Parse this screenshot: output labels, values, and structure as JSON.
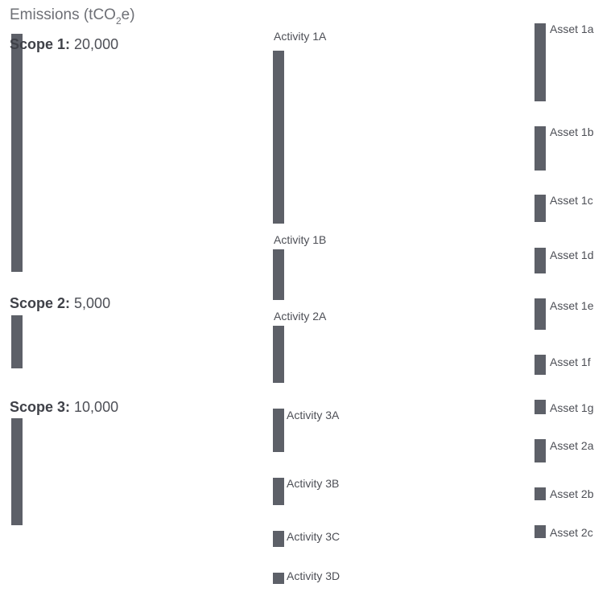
{
  "title": {
    "main": "Emissions (tCO",
    "sub": "2",
    "end": "e)"
  },
  "colors": {
    "node": "#5d6068",
    "scope1": "#d07c8c",
    "scope2": "#e0aab2",
    "scope3": "#ecccd0"
  },
  "scopes": [
    {
      "id": "scope1",
      "name": "Scope 1:",
      "value": "20,000"
    },
    {
      "id": "scope2",
      "name": "Scope 2:",
      "value": "5,000"
    },
    {
      "id": "scope3",
      "name": "Scope 3:",
      "value": "10,000"
    }
  ],
  "activities": [
    {
      "id": "a1A",
      "label": "Activity 1A"
    },
    {
      "id": "a1B",
      "label": "Activity 1B"
    },
    {
      "id": "a2A",
      "label": "Activity 2A"
    },
    {
      "id": "a3A",
      "label": "Activity 3A"
    },
    {
      "id": "a3B",
      "label": "Activity 3B"
    },
    {
      "id": "a3C",
      "label": "Activity 3C"
    },
    {
      "id": "a3D",
      "label": "Activity 3D"
    }
  ],
  "assets": [
    {
      "id": "as1a",
      "label": "Asset 1a"
    },
    {
      "id": "as1b",
      "label": "Asset 1b"
    },
    {
      "id": "as1c",
      "label": "Asset 1c"
    },
    {
      "id": "as1d",
      "label": "Asset 1d"
    },
    {
      "id": "as1e",
      "label": "Asset 1e"
    },
    {
      "id": "as1f",
      "label": "Asset 1f"
    },
    {
      "id": "as1g",
      "label": "Asset 1g"
    },
    {
      "id": "as2a",
      "label": "Asset 2a"
    },
    {
      "id": "as2b",
      "label": "Asset 2b"
    },
    {
      "id": "as2c",
      "label": "Asset 2c"
    }
  ],
  "flows": [
    {
      "from": "scope1",
      "to": "a1A",
      "group": "scope1"
    },
    {
      "from": "scope1",
      "to": "a1B",
      "group": "scope1"
    },
    {
      "from": "scope2",
      "to": "a1B",
      "group": "scope2"
    },
    {
      "from": "scope2",
      "to": "a2A",
      "group": "scope2"
    },
    {
      "from": "scope3",
      "to": "a2A",
      "group": "scope3"
    },
    {
      "from": "scope3",
      "to": "a3A",
      "group": "scope3"
    },
    {
      "from": "scope3",
      "to": "a3B",
      "group": "scope3"
    },
    {
      "from": "scope3",
      "to": "a3C",
      "group": "scope3"
    },
    {
      "from": "scope3",
      "to": "a3D",
      "group": "scope3"
    },
    {
      "from": "a1A",
      "to": "as1a",
      "group": "scope1"
    },
    {
      "from": "a1A",
      "to": "as1b",
      "group": "scope1"
    },
    {
      "from": "a1A",
      "to": "as1c",
      "group": "scope1"
    },
    {
      "from": "a1A",
      "to": "as1d",
      "group": "scope1"
    },
    {
      "from": "a1A",
      "to": "as1f",
      "group": "scope1"
    },
    {
      "from": "a1B",
      "to": "as1d",
      "group": "scope1"
    },
    {
      "from": "a1B",
      "to": "as1e",
      "group": "scope1"
    },
    {
      "from": "a1B",
      "to": "as1g",
      "group": "scope1"
    },
    {
      "from": "a2A",
      "to": "as1f",
      "group": "scope2"
    },
    {
      "from": "a2A",
      "to": "as2a",
      "group": "scope2"
    },
    {
      "from": "a2A",
      "to": "as2b",
      "group": "scope2"
    },
    {
      "from": "a2A",
      "to": "as2c",
      "group": "scope2"
    }
  ]
}
